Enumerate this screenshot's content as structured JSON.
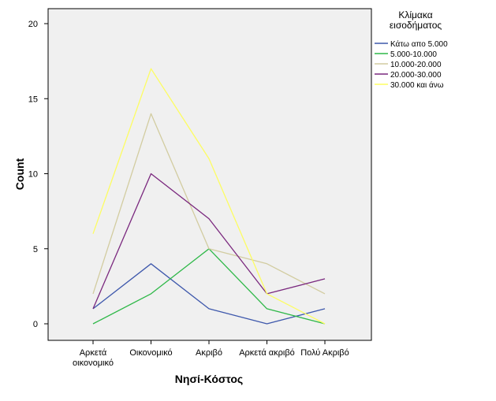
{
  "chart_data": {
    "type": "line",
    "title": "",
    "xlabel": "Νησί-Κόστος",
    "ylabel": "Count",
    "ylim": [
      0,
      20
    ],
    "yticks": [
      0,
      5,
      10,
      15,
      20
    ],
    "categories": [
      [
        "Αρκετά",
        "οικονομικό"
      ],
      [
        "Οικονομικό"
      ],
      [
        "Ακριβό"
      ],
      [
        "Αρκετά ακριβό"
      ],
      [
        "Πολύ Ακριβό"
      ]
    ],
    "grid": false,
    "legend": {
      "title": [
        "Κλίμακα",
        "εισοδήματος"
      ],
      "placement": "top-right, outside plot"
    },
    "series": [
      {
        "name": "Κάτω απο 5.000",
        "color": "#3e58ac",
        "values": [
          1,
          4,
          1,
          0,
          1
        ]
      },
      {
        "name": "5.000-10.000",
        "color": "#2eb848",
        "values": [
          0,
          2,
          5,
          1,
          0
        ]
      },
      {
        "name": "10.000-20.000",
        "color": "#d2cca0",
        "values": [
          2,
          14,
          5,
          4,
          2
        ]
      },
      {
        "name": "20.000-30.000",
        "color": "#7a287e",
        "values": [
          1,
          10,
          7,
          2,
          3
        ]
      },
      {
        "name": "30.000 και άνω",
        "color": "#fdfd62",
        "values": [
          6,
          17,
          11,
          2,
          0
        ]
      }
    ]
  }
}
